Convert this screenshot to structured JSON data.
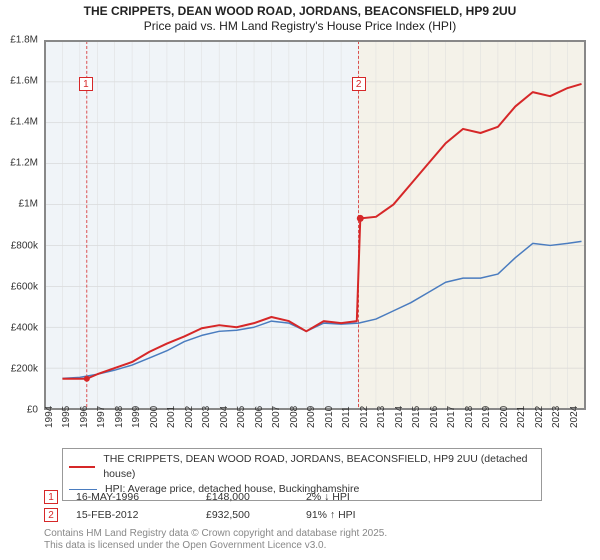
{
  "title1": "THE CRIPPETS, DEAN WOOD ROAD, JORDANS, BEACONSFIELD, HP9 2UU",
  "title2": "Price paid vs. HM Land Registry's House Price Index (HPI)",
  "chart": {
    "type": "line",
    "background_color": "#f4f2e9",
    "plot_border_color": "#888888",
    "ylim": [
      0,
      1800000
    ],
    "ytick_step": 200000,
    "yticks": [
      {
        "v": 0,
        "label": "£0"
      },
      {
        "v": 200000,
        "label": "£200k"
      },
      {
        "v": 400000,
        "label": "£400k"
      },
      {
        "v": 600000,
        "label": "£600k"
      },
      {
        "v": 800000,
        "label": "£800k"
      },
      {
        "v": 1000000,
        "label": "£1M"
      },
      {
        "v": 1200000,
        "label": "£1.2M"
      },
      {
        "v": 1400000,
        "label": "£1.4M"
      },
      {
        "v": 1600000,
        "label": "£1.6M"
      },
      {
        "v": 1800000,
        "label": "£1.8M"
      }
    ],
    "xlim": [
      1994,
      2025
    ],
    "xtick_step": 1,
    "xticks": [
      1994,
      1995,
      1996,
      1997,
      1998,
      1999,
      2000,
      2001,
      2002,
      2003,
      2004,
      2005,
      2006,
      2007,
      2008,
      2009,
      2010,
      2011,
      2012,
      2013,
      2014,
      2015,
      2016,
      2017,
      2018,
      2019,
      2020,
      2021,
      2022,
      2023,
      2024
    ],
    "marker_jump_x": 2012,
    "series": [
      {
        "name": "crippets",
        "label": "THE CRIPPETS, DEAN WOOD ROAD, JORDANS, BEACONSFIELD, HP9 2UU (detached house)",
        "color": "#d62728",
        "line_width": 2,
        "points": [
          [
            1995,
            148000
          ],
          [
            1996,
            148000
          ],
          [
            1996.4,
            148000
          ],
          [
            1997,
            170000
          ],
          [
            1998,
            200000
          ],
          [
            1999,
            230000
          ],
          [
            2000,
            280000
          ],
          [
            2001,
            320000
          ],
          [
            2002,
            355000
          ],
          [
            2003,
            395000
          ],
          [
            2004,
            410000
          ],
          [
            2005,
            400000
          ],
          [
            2006,
            420000
          ],
          [
            2007,
            450000
          ],
          [
            2008,
            430000
          ],
          [
            2009,
            380000
          ],
          [
            2010,
            430000
          ],
          [
            2011,
            420000
          ],
          [
            2011.9,
            430000
          ],
          [
            2012.1,
            932500
          ],
          [
            2013,
            940000
          ],
          [
            2014,
            1000000
          ],
          [
            2015,
            1100000
          ],
          [
            2016,
            1200000
          ],
          [
            2017,
            1300000
          ],
          [
            2018,
            1370000
          ],
          [
            2019,
            1350000
          ],
          [
            2020,
            1380000
          ],
          [
            2021,
            1480000
          ],
          [
            2022,
            1550000
          ],
          [
            2023,
            1530000
          ],
          [
            2024,
            1570000
          ],
          [
            2024.8,
            1590000
          ]
        ]
      },
      {
        "name": "hpi",
        "label": "HPI: Average price, detached house, Buckinghamshire",
        "color": "#4a7cbf",
        "line_width": 1.5,
        "points": [
          [
            1995,
            150000
          ],
          [
            1996,
            155000
          ],
          [
            1997,
            170000
          ],
          [
            1998,
            190000
          ],
          [
            1999,
            215000
          ],
          [
            2000,
            250000
          ],
          [
            2001,
            285000
          ],
          [
            2002,
            330000
          ],
          [
            2003,
            360000
          ],
          [
            2004,
            380000
          ],
          [
            2005,
            385000
          ],
          [
            2006,
            400000
          ],
          [
            2007,
            430000
          ],
          [
            2008,
            420000
          ],
          [
            2009,
            380000
          ],
          [
            2010,
            420000
          ],
          [
            2011,
            415000
          ],
          [
            2012,
            420000
          ],
          [
            2013,
            440000
          ],
          [
            2014,
            480000
          ],
          [
            2015,
            520000
          ],
          [
            2016,
            570000
          ],
          [
            2017,
            620000
          ],
          [
            2018,
            640000
          ],
          [
            2019,
            640000
          ],
          [
            2020,
            660000
          ],
          [
            2021,
            740000
          ],
          [
            2022,
            810000
          ],
          [
            2023,
            800000
          ],
          [
            2024,
            810000
          ],
          [
            2024.8,
            820000
          ]
        ]
      }
    ],
    "markers": [
      {
        "n": "1",
        "x": 1996.4,
        "y_top": 1800000,
        "box_y": 1620000,
        "color": "#d62728"
      },
      {
        "n": "2",
        "x": 2012.0,
        "y_top": 1800000,
        "box_y": 1620000,
        "color": "#d62728"
      }
    ]
  },
  "legend": [
    {
      "color": "#d62728",
      "width": 2,
      "label": "THE CRIPPETS, DEAN WOOD ROAD, JORDANS, BEACONSFIELD, HP9 2UU (detached house)"
    },
    {
      "color": "#4a7cbf",
      "width": 1.5,
      "label": "HPI: Average price, detached house, Buckinghamshire"
    }
  ],
  "marker_table": [
    {
      "n": "1",
      "color": "#d62728",
      "date": "16-MAY-1996",
      "price": "£148,000",
      "pct": "2% ↓ HPI"
    },
    {
      "n": "2",
      "color": "#d62728",
      "date": "15-FEB-2012",
      "price": "£932,500",
      "pct": "91% ↑ HPI"
    }
  ],
  "footer1": "Contains HM Land Registry data © Crown copyright and database right 2025.",
  "footer2": "This data is licensed under the Open Government Licence v3.0."
}
